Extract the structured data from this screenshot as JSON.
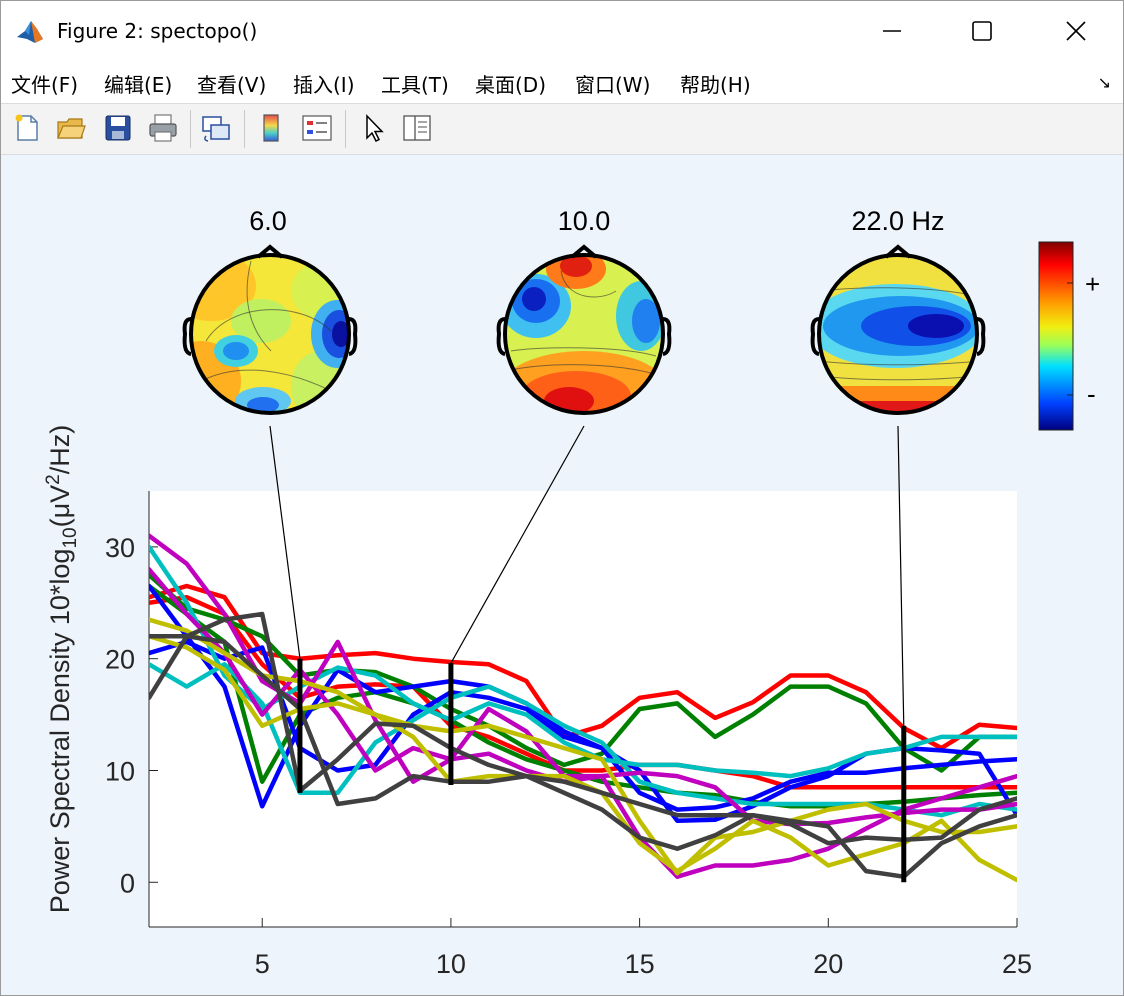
{
  "window": {
    "title": "Figure 2: spectopo()",
    "minimize_icon": "minimize-icon",
    "maximize_icon": "maximize-icon",
    "close_icon": "close-icon"
  },
  "menu": {
    "items": [
      "文件(F)",
      "编辑(E)",
      "查看(V)",
      "插入(I)",
      "工具(T)",
      "桌面(D)",
      "窗口(W)",
      "帮助(H)"
    ]
  },
  "toolbar": {
    "icons": [
      "new-figure-icon",
      "open-file-icon",
      "save-icon",
      "print-icon",
      "link-plot-icon",
      "colorbar-icon",
      "legend-icon",
      "pointer-icon",
      "property-inspector-icon"
    ]
  },
  "topo": {
    "labels": [
      "6.0",
      "10.0",
      "22.0 Hz"
    ],
    "colorbar_plus": "+",
    "colorbar_minus": "-"
  },
  "colors": {
    "red": "#ff0000",
    "green": "#008000",
    "blue": "#0000ff",
    "cyan": "#00bfbf",
    "magenta": "#bf00bf",
    "olive": "#bfbf00",
    "gray": "#404040"
  },
  "chart_data": {
    "type": "line",
    "ylabel_parts": {
      "main": "Power Spectral Density 10*log",
      "sub1": "10",
      "mid": "(μV",
      "sup": "2",
      "end": "/Hz)"
    },
    "xlabel": "",
    "xlim": [
      2,
      25
    ],
    "ylim": [
      -4,
      35
    ],
    "xticks": [
      5,
      10,
      15,
      20,
      25
    ],
    "yticks": [
      0,
      10,
      20,
      30
    ],
    "x": [
      2,
      3,
      4,
      5,
      6,
      7,
      8,
      9,
      10,
      11,
      12,
      13,
      14,
      15,
      16,
      17,
      18,
      19,
      20,
      21,
      22,
      23,
      24,
      25
    ],
    "markers": [
      6,
      10,
      22
    ],
    "marker_ranges": [
      [
        8,
        20
      ],
      [
        8.7,
        19.6
      ],
      [
        0,
        14
      ]
    ],
    "series": [
      {
        "color": "red",
        "values": [
          25.5,
          26.5,
          25.5,
          20.5,
          20,
          20.3,
          20.5,
          20,
          19.7,
          19.5,
          18,
          13,
          14,
          16.5,
          17,
          14.7,
          16.1,
          18.5,
          18.5,
          17,
          13.8,
          12,
          14.1,
          13.8
        ]
      },
      {
        "color": "red",
        "values": [
          25,
          25.5,
          24,
          19.5,
          16.5,
          17.5,
          17.7,
          17.5,
          14,
          13,
          11.5,
          10,
          10,
          10.5,
          10.5,
          10,
          9.5,
          8.5,
          8.5,
          8.5,
          8.5,
          8.5,
          8.5,
          8.5
        ]
      },
      {
        "color": "green",
        "values": [
          27.5,
          24.5,
          23.5,
          22,
          18.5,
          19,
          18.8,
          17.5,
          15.5,
          14,
          12,
          10.5,
          11.5,
          15.5,
          16,
          13,
          15,
          17.5,
          17.5,
          16,
          12,
          10,
          13,
          13
        ]
      },
      {
        "color": "green",
        "values": [
          26.5,
          24,
          21.5,
          9,
          15,
          16.5,
          17,
          16,
          14.5,
          12.5,
          11,
          10,
          9,
          8.5,
          8,
          7.8,
          7.2,
          6.8,
          6.8,
          7,
          7.2,
          7.5,
          7.8,
          8
        ]
      },
      {
        "color": "blue",
        "values": [
          26.5,
          22,
          17.5,
          6.8,
          14,
          19,
          17,
          17.5,
          18,
          17.5,
          16,
          13.5,
          12,
          8,
          6.5,
          6.7,
          7.5,
          9,
          9.8,
          9.8,
          10.2,
          10.5,
          10.8,
          11
        ]
      },
      {
        "color": "blue",
        "values": [
          20.5,
          21.5,
          20,
          21,
          12,
          10,
          10.5,
          15,
          17,
          16.5,
          15.5,
          13,
          12,
          10,
          5.5,
          5.6,
          6.8,
          8.5,
          9.5,
          11.5,
          12,
          11.8,
          11.5,
          6
        ]
      },
      {
        "color": "cyan",
        "values": [
          30,
          25,
          18.5,
          15.5,
          17.5,
          19.2,
          18.5,
          16,
          14.5,
          16,
          15,
          12.5,
          11,
          10.5,
          10.5,
          10,
          9.8,
          9.5,
          10.2,
          11.5,
          12,
          13,
          13,
          13
        ]
      },
      {
        "color": "cyan",
        "values": [
          19.5,
          17.5,
          19.5,
          16,
          8,
          8,
          12.5,
          14.5,
          16.5,
          17.5,
          16,
          14,
          12.5,
          9,
          8,
          7.5,
          7,
          7,
          7,
          7,
          6.5,
          6,
          7,
          6.5
        ]
      },
      {
        "color": "magenta",
        "values": [
          31,
          28.5,
          24,
          18,
          16,
          21.5,
          14.5,
          9,
          11,
          15.5,
          13.5,
          9.5,
          9.5,
          4,
          0.5,
          1.5,
          1.5,
          2,
          3,
          4.8,
          6.5,
          7.5,
          8.5,
          9.5
        ]
      },
      {
        "color": "magenta",
        "values": [
          28,
          24,
          20.5,
          15,
          19,
          15,
          10,
          12,
          11,
          11.5,
          10,
          9,
          9.5,
          9.8,
          9.5,
          8.5,
          5.5,
          5.2,
          5.3,
          5.8,
          6.2,
          6.5,
          6.5,
          7
        ]
      },
      {
        "color": "olive",
        "values": [
          23.5,
          22.5,
          20.5,
          18.5,
          18,
          17,
          15,
          14,
          13.5,
          14,
          13,
          12,
          11,
          5.5,
          0.8,
          4,
          4.5,
          5.5,
          6.5,
          7,
          5.5,
          4.5,
          4.5,
          5
        ]
      },
      {
        "color": "olive",
        "values": [
          22,
          21,
          19,
          14,
          15.5,
          16,
          15,
          13,
          9,
          9.5,
          9.5,
          9.5,
          8,
          3.5,
          1,
          3,
          5.5,
          4,
          1.5,
          2.5,
          3.5,
          5.5,
          2,
          0.2
        ]
      },
      {
        "color": "gray",
        "values": [
          16.5,
          22,
          23.5,
          24,
          8.2,
          11,
          14.2,
          14,
          12,
          10.5,
          9.5,
          8,
          6.5,
          4,
          3,
          4.2,
          6,
          5.2,
          3.5,
          4,
          3.8,
          4,
          6.5,
          7.5
        ]
      },
      {
        "color": "gray",
        "values": [
          22,
          22,
          21.5,
          18.5,
          15.5,
          7,
          7.5,
          9.5,
          9,
          9,
          9.5,
          9,
          8,
          7,
          6,
          6,
          6,
          5.5,
          5,
          1,
          0.5,
          3.5,
          5,
          6
        ]
      }
    ]
  }
}
